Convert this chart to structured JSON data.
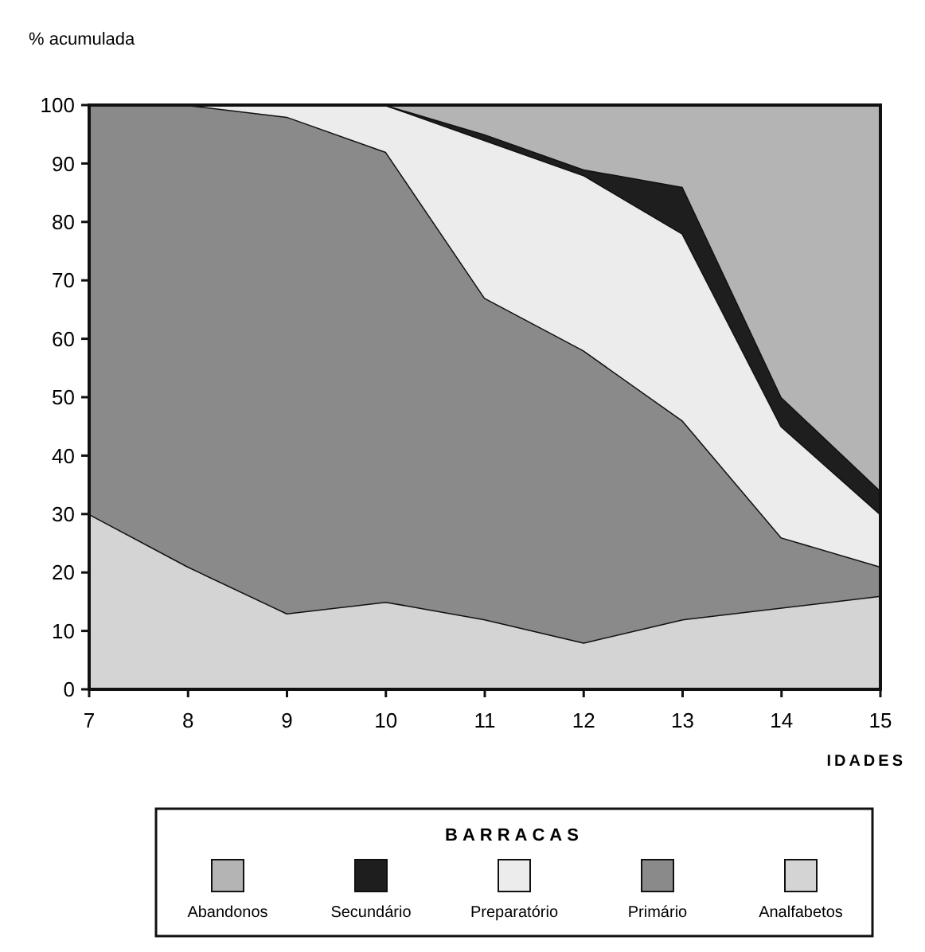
{
  "chart_data": {
    "type": "area",
    "stacked": true,
    "ylabel": "% acumulada",
    "xlabel": "IDADES",
    "legend_title": "BARRACAS",
    "legend": "bottom",
    "x": [
      7,
      8,
      9,
      10,
      11,
      12,
      13,
      14,
      15
    ],
    "xlim": [
      7,
      15
    ],
    "xticks": [
      7,
      8,
      9,
      10,
      11,
      12,
      13,
      14,
      15
    ],
    "ylim": [
      0,
      100
    ],
    "yticks": [
      0,
      10,
      20,
      30,
      40,
      50,
      60,
      70,
      80,
      90,
      100
    ],
    "series": [
      {
        "name": "Analfabetos",
        "color": "#d4d4d4",
        "values": [
          30,
          21,
          13,
          15,
          12,
          8,
          12,
          14,
          16
        ]
      },
      {
        "name": "Primário",
        "color": "#8a8a8a",
        "values": [
          70,
          79,
          85,
          77,
          55,
          50,
          34,
          12,
          5
        ]
      },
      {
        "name": "Preparatório",
        "color": "#ececec",
        "values": [
          0,
          0,
          2,
          8,
          27,
          30,
          32,
          19,
          9
        ]
      },
      {
        "name": "Secundário",
        "color": "#1e1e1e",
        "values": [
          0,
          0,
          0,
          0,
          1,
          1,
          8,
          5,
          4
        ]
      },
      {
        "name": "Abandonos",
        "color": "#b4b4b4",
        "values": [
          0,
          0,
          0,
          0,
          5,
          11,
          14,
          50,
          66
        ]
      }
    ]
  }
}
